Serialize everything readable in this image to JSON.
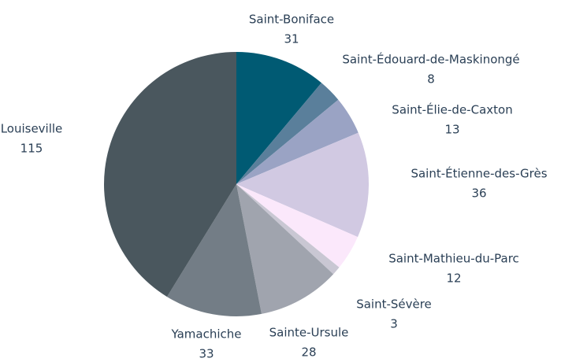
{
  "chart_data": {
    "type": "pie",
    "categories": [
      "Saint-Boniface",
      "Saint-Édouard-de-Maskinongé",
      "Saint-Élie-de-Caxton",
      "Saint-Étienne-des-Grès",
      "Saint-Mathieu-du-Parc",
      "Saint-Sévère",
      "Sainte-Ursule",
      "Yamachiche",
      "Louiseville"
    ],
    "values": [
      31,
      8,
      13,
      36,
      12,
      3,
      28,
      33,
      115
    ],
    "colors": [
      "#005a73",
      "#5a7f9b",
      "#9aa3c4",
      "#d1c9e2",
      "#fbe8fb",
      "#c9c7d3",
      "#a0a4ae",
      "#737d86",
      "#4a575e"
    ]
  }
}
